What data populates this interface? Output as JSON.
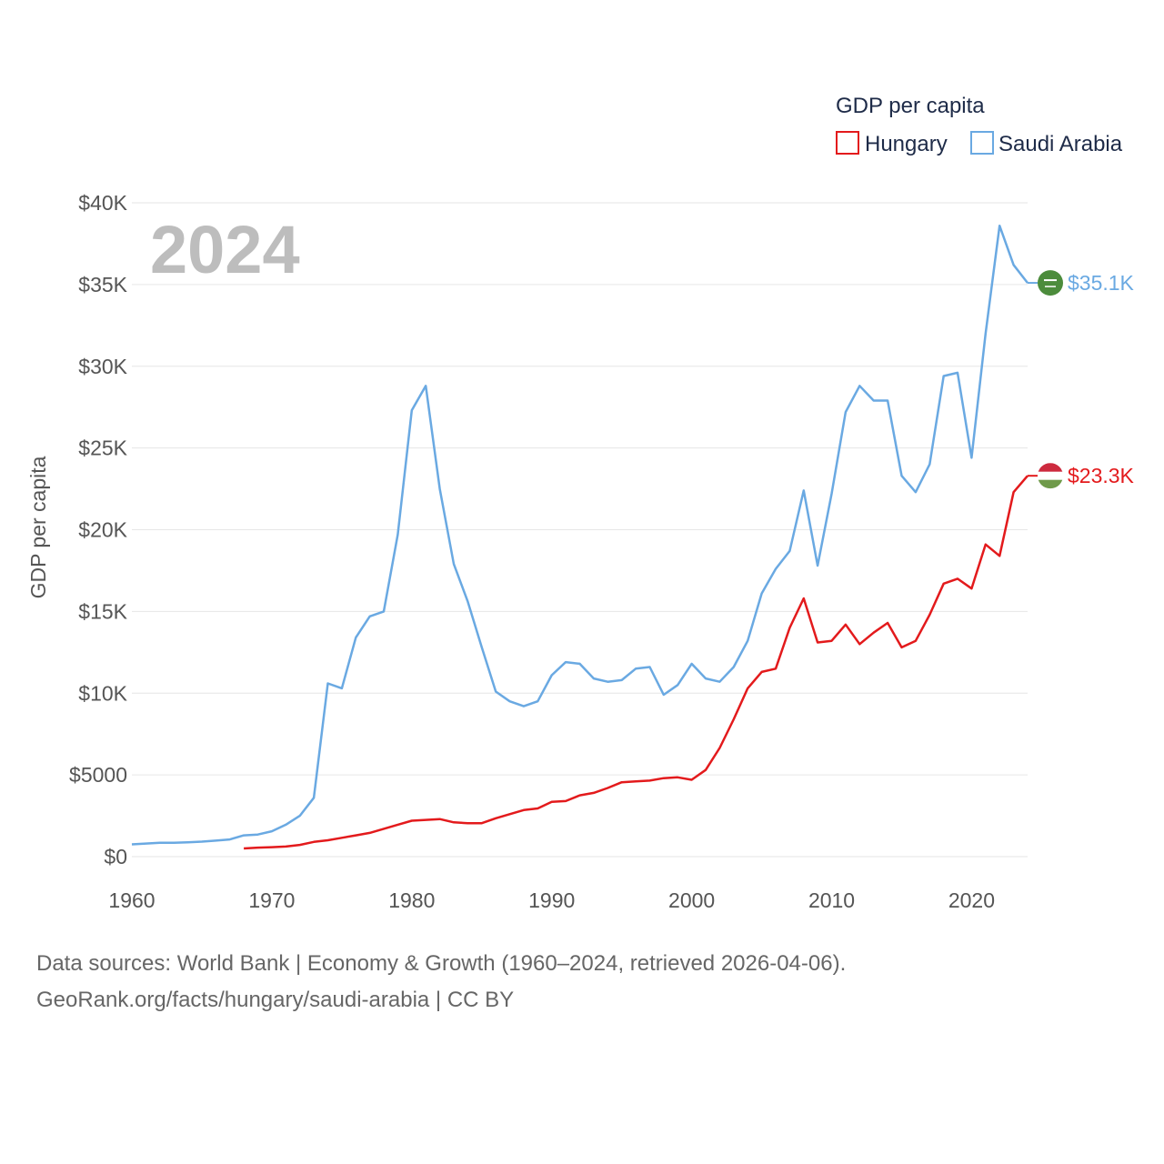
{
  "chart_data": {
    "type": "line",
    "title": "GDP per capita",
    "ylabel": "GDP per capita",
    "xlabel": "",
    "xlim": [
      1960,
      2024
    ],
    "ylim": [
      0,
      40000
    ],
    "current_year_label": "2024",
    "x_ticks": [
      1960,
      1970,
      1980,
      1990,
      2000,
      2010,
      2020
    ],
    "x_tick_labels": [
      "1960",
      "1970",
      "1980",
      "1990",
      "2000",
      "2010",
      "2020"
    ],
    "y_ticks": [
      0,
      5000,
      10000,
      15000,
      20000,
      25000,
      30000,
      35000,
      40000
    ],
    "y_tick_labels": [
      "$0",
      "$5000",
      "$10K",
      "$15K",
      "$20K",
      "$25K",
      "$30K",
      "$35K",
      "$40K"
    ],
    "grid": true,
    "legend_position": "top-right",
    "series": [
      {
        "name": "Hungary",
        "color": "#e31a1c",
        "end_label": "$23.3K",
        "x": [
          1968,
          1969,
          1970,
          1971,
          1972,
          1973,
          1974,
          1975,
          1976,
          1977,
          1978,
          1979,
          1980,
          1981,
          1982,
          1983,
          1984,
          1985,
          1986,
          1987,
          1988,
          1989,
          1990,
          1991,
          1992,
          1993,
          1994,
          1995,
          1996,
          1997,
          1998,
          1999,
          2000,
          2001,
          2002,
          2003,
          2004,
          2005,
          2006,
          2007,
          2008,
          2009,
          2010,
          2011,
          2012,
          2013,
          2014,
          2015,
          2016,
          2017,
          2018,
          2019,
          2020,
          2021,
          2022,
          2023,
          2024
        ],
        "values": [
          500,
          550,
          580,
          620,
          720,
          900,
          1000,
          1150,
          1300,
          1450,
          1700,
          1950,
          2200,
          2250,
          2300,
          2100,
          2050,
          2050,
          2350,
          2600,
          2850,
          2950,
          3350,
          3400,
          3750,
          3900,
          4200,
          4550,
          4600,
          4650,
          4800,
          4850,
          4700,
          5300,
          6650,
          8400,
          10300,
          11300,
          11500,
          14000,
          15800,
          13100,
          13200,
          14200,
          13000,
          13700,
          14300,
          12800,
          13200,
          14800,
          16700,
          17000,
          16400,
          19100,
          18400,
          22300,
          23300
        ]
      },
      {
        "name": "Saudi Arabia",
        "color": "#6aa9e2",
        "end_label": "$35.1K",
        "x": [
          1960,
          1961,
          1962,
          1963,
          1964,
          1965,
          1966,
          1967,
          1968,
          1969,
          1970,
          1971,
          1972,
          1973,
          1974,
          1975,
          1976,
          1977,
          1978,
          1979,
          1980,
          1981,
          1982,
          1983,
          1984,
          1985,
          1986,
          1987,
          1988,
          1989,
          1990,
          1991,
          1992,
          1993,
          1994,
          1995,
          1996,
          1997,
          1998,
          1999,
          2000,
          2001,
          2002,
          2003,
          2004,
          2005,
          2006,
          2007,
          2008,
          2009,
          2010,
          2011,
          2012,
          2013,
          2014,
          2015,
          2016,
          2017,
          2018,
          2019,
          2020,
          2021,
          2022,
          2023,
          2024
        ],
        "values": [
          750,
          800,
          850,
          850,
          880,
          920,
          980,
          1050,
          1300,
          1350,
          1550,
          1950,
          2500,
          3600,
          10600,
          10300,
          13400,
          14700,
          15000,
          19700,
          27300,
          28800,
          22500,
          17900,
          15600,
          12800,
          10100,
          9500,
          9200,
          9500,
          11100,
          11900,
          11800,
          10900,
          10700,
          10800,
          11500,
          11600,
          9900,
          10500,
          11800,
          10900,
          10700,
          11600,
          13200,
          16100,
          17600,
          18700,
          22400,
          17800,
          22200,
          27200,
          28800,
          27900,
          27900,
          23300,
          22300,
          24000,
          29400,
          29600,
          24400,
          32000,
          38600,
          36200,
          35100
        ]
      }
    ]
  },
  "footer": {
    "line1": "Data sources: World Bank | Economy & Growth (1960–2024, retrieved 2026-04-06).",
    "line2": "GeoRank.org/facts/hungary/saudi-arabia | CC BY"
  }
}
